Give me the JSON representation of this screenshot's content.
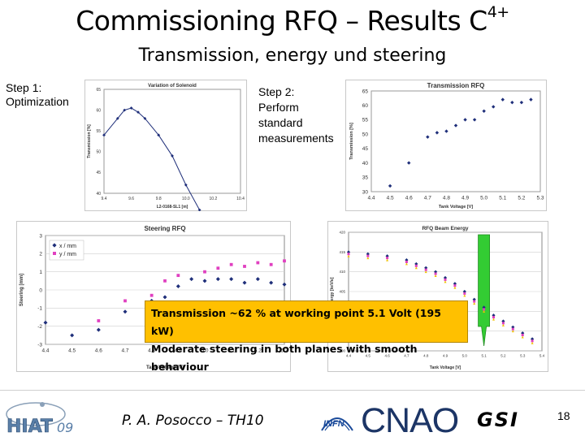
{
  "slide": {
    "title": "Commissioning RFQ – Results C",
    "title_superscript": "4+",
    "subtitle": "Transmission, energy und steering",
    "step1": {
      "line1": "Step 1:",
      "line2": "Optimization"
    },
    "step2": {
      "line1": "Step 2:",
      "line2": "Perform",
      "line3": "standard",
      "line4": "measurements"
    },
    "info": {
      "line1": "Transmission ~62 % at working point 5.1 Volt (195 kW)",
      "line2": "Moderate steering in both planes with smooth behaviour"
    },
    "author": "P. A. Posocco – TH10",
    "page_number": "18",
    "logos": {
      "hiat": "HIAT",
      "hiat_year": "09",
      "infn": "INFN",
      "cnao": "CNAO",
      "gsi": "GSI"
    },
    "colors": {
      "info_box": "#ffc000",
      "highlight_bar": "#33cc33",
      "series_blue": "#1f2f7a",
      "series_pink": "#e040c0",
      "series_yellow": "#f0c000"
    }
  },
  "chart_data": [
    {
      "id": "solenoid",
      "type": "line",
      "title": "Variation of Solenoid",
      "xlabel": "L2-0168-SL1 [m]",
      "ylabel": "Transmission [%]",
      "x": [
        9.4,
        9.5,
        9.55,
        9.6,
        9.65,
        9.7,
        9.8,
        9.9,
        10.0,
        10.1
      ],
      "y": [
        54,
        58,
        60,
        60.5,
        59.5,
        58,
        54,
        49,
        42,
        36
      ],
      "xlim": [
        9.4,
        10.4
      ],
      "ylim": [
        40,
        65
      ],
      "xticks": [
        "9.4",
        "9.6",
        "9.8",
        "10.0",
        "10.2",
        "10.4"
      ],
      "yticks": [
        "40",
        "45",
        "50",
        "55",
        "60",
        "65"
      ]
    },
    {
      "id": "transmission",
      "type": "scatter",
      "title": "Transmission RFQ",
      "xlabel": "Tank Voltage [V]",
      "ylabel": "Transmission [%]",
      "x": [
        4.5,
        4.6,
        4.7,
        4.75,
        4.8,
        4.85,
        4.9,
        4.95,
        5.0,
        5.05,
        5.1,
        5.15,
        5.2,
        5.25
      ],
      "y": [
        32,
        40,
        49,
        50.5,
        51,
        53,
        55,
        55,
        58,
        59.5,
        62,
        61,
        61,
        62
      ],
      "xlim": [
        4.4,
        5.3
      ],
      "ylim": [
        30,
        65
      ],
      "xticks": [
        "4.4",
        "4.5",
        "4.6",
        "4.7",
        "4.8",
        "4.9",
        "5.0",
        "5.1",
        "5.2",
        "5.3"
      ],
      "yticks": [
        "30",
        "35",
        "40",
        "45",
        "50",
        "55",
        "60",
        "65"
      ]
    },
    {
      "id": "steering",
      "type": "scatter",
      "title": "Steering RFQ",
      "xlabel": "Tank Voltage [V]",
      "ylabel": "Steering [mm]",
      "series": [
        {
          "name": "x / mm",
          "x": [
            4.4,
            4.5,
            4.6,
            4.7,
            4.8,
            4.85,
            4.9,
            4.95,
            5.0,
            5.05,
            5.1,
            5.15,
            5.2,
            5.25,
            5.3
          ],
          "y": [
            -1.8,
            -2.5,
            -2.2,
            -1.2,
            -0.6,
            -0.4,
            0.2,
            0.6,
            0.5,
            0.6,
            0.6,
            0.4,
            0.6,
            0.4,
            0.3
          ]
        },
        {
          "name": "y / mm",
          "x": [
            4.6,
            4.7,
            4.8,
            4.85,
            4.9,
            5.0,
            5.05,
            5.1,
            5.15,
            5.2,
            5.25,
            5.3
          ],
          "y": [
            -1.7,
            -0.6,
            -0.3,
            0.5,
            0.8,
            1.0,
            1.2,
            1.4,
            1.3,
            1.5,
            1.4,
            1.6
          ]
        }
      ],
      "xlim": [
        4.4,
        5.3
      ],
      "ylim": [
        -3,
        3
      ],
      "xticks": [
        "4.4",
        "4.5",
        "4.6",
        "4.7",
        "4.8",
        "4.9",
        "5.0",
        "5.1",
        "5.2",
        "5.3"
      ],
      "yticks": [
        "-3",
        "-2",
        "-1",
        "0",
        "1",
        "2",
        "3"
      ],
      "legend": "top-left"
    },
    {
      "id": "energy",
      "type": "scatter",
      "title": "RFQ Beam Energy",
      "xlabel": "Tank Voltage [V]",
      "ylabel": "Energy [keV/u]",
      "series": [
        {
          "x": [
            4.4,
            4.5,
            4.6,
            4.7,
            4.75,
            4.8,
            4.85,
            4.9,
            4.95,
            5.0,
            5.05,
            5.1,
            5.15,
            5.2,
            5.25,
            5.3,
            5.35
          ],
          "y": [
            415,
            414.5,
            414,
            413,
            412,
            411,
            410,
            408.5,
            407,
            405,
            403,
            401,
            399,
            397.5,
            396,
            394.5,
            393
          ]
        },
        {
          "x": [
            4.4,
            4.5,
            4.6,
            4.7,
            4.75,
            4.8,
            4.85,
            4.9,
            4.95,
            5.0,
            5.05,
            5.1,
            5.15,
            5.2,
            5.25,
            5.3,
            5.35
          ],
          "y": [
            414.5,
            414,
            413.5,
            412.5,
            411.5,
            410.5,
            409.5,
            408,
            406.5,
            404.5,
            402.5,
            400.5,
            398.5,
            397,
            395.5,
            394,
            392.5
          ]
        },
        {
          "x": [
            4.4,
            4.5,
            4.6,
            4.7,
            4.75,
            4.8,
            4.85,
            4.9,
            4.95,
            5.0,
            5.05,
            5.1,
            5.15,
            5.2,
            5.25,
            5.3,
            5.35
          ],
          "y": [
            414,
            413.5,
            413,
            412,
            411,
            410,
            409,
            407.5,
            406,
            404,
            402,
            400,
            398,
            396.5,
            395,
            393.5,
            392
          ]
        }
      ],
      "xlim": [
        4.4,
        5.4
      ],
      "ylim": [
        390,
        420
      ],
      "xticks": [
        "4.4",
        "4.5",
        "4.6",
        "4.7",
        "4.8",
        "4.9",
        "5.0",
        "5.1",
        "5.2",
        "5.3",
        "5.4"
      ],
      "yticks": [
        "390",
        "395",
        "400",
        "405",
        "410",
        "415",
        "420"
      ]
    }
  ]
}
